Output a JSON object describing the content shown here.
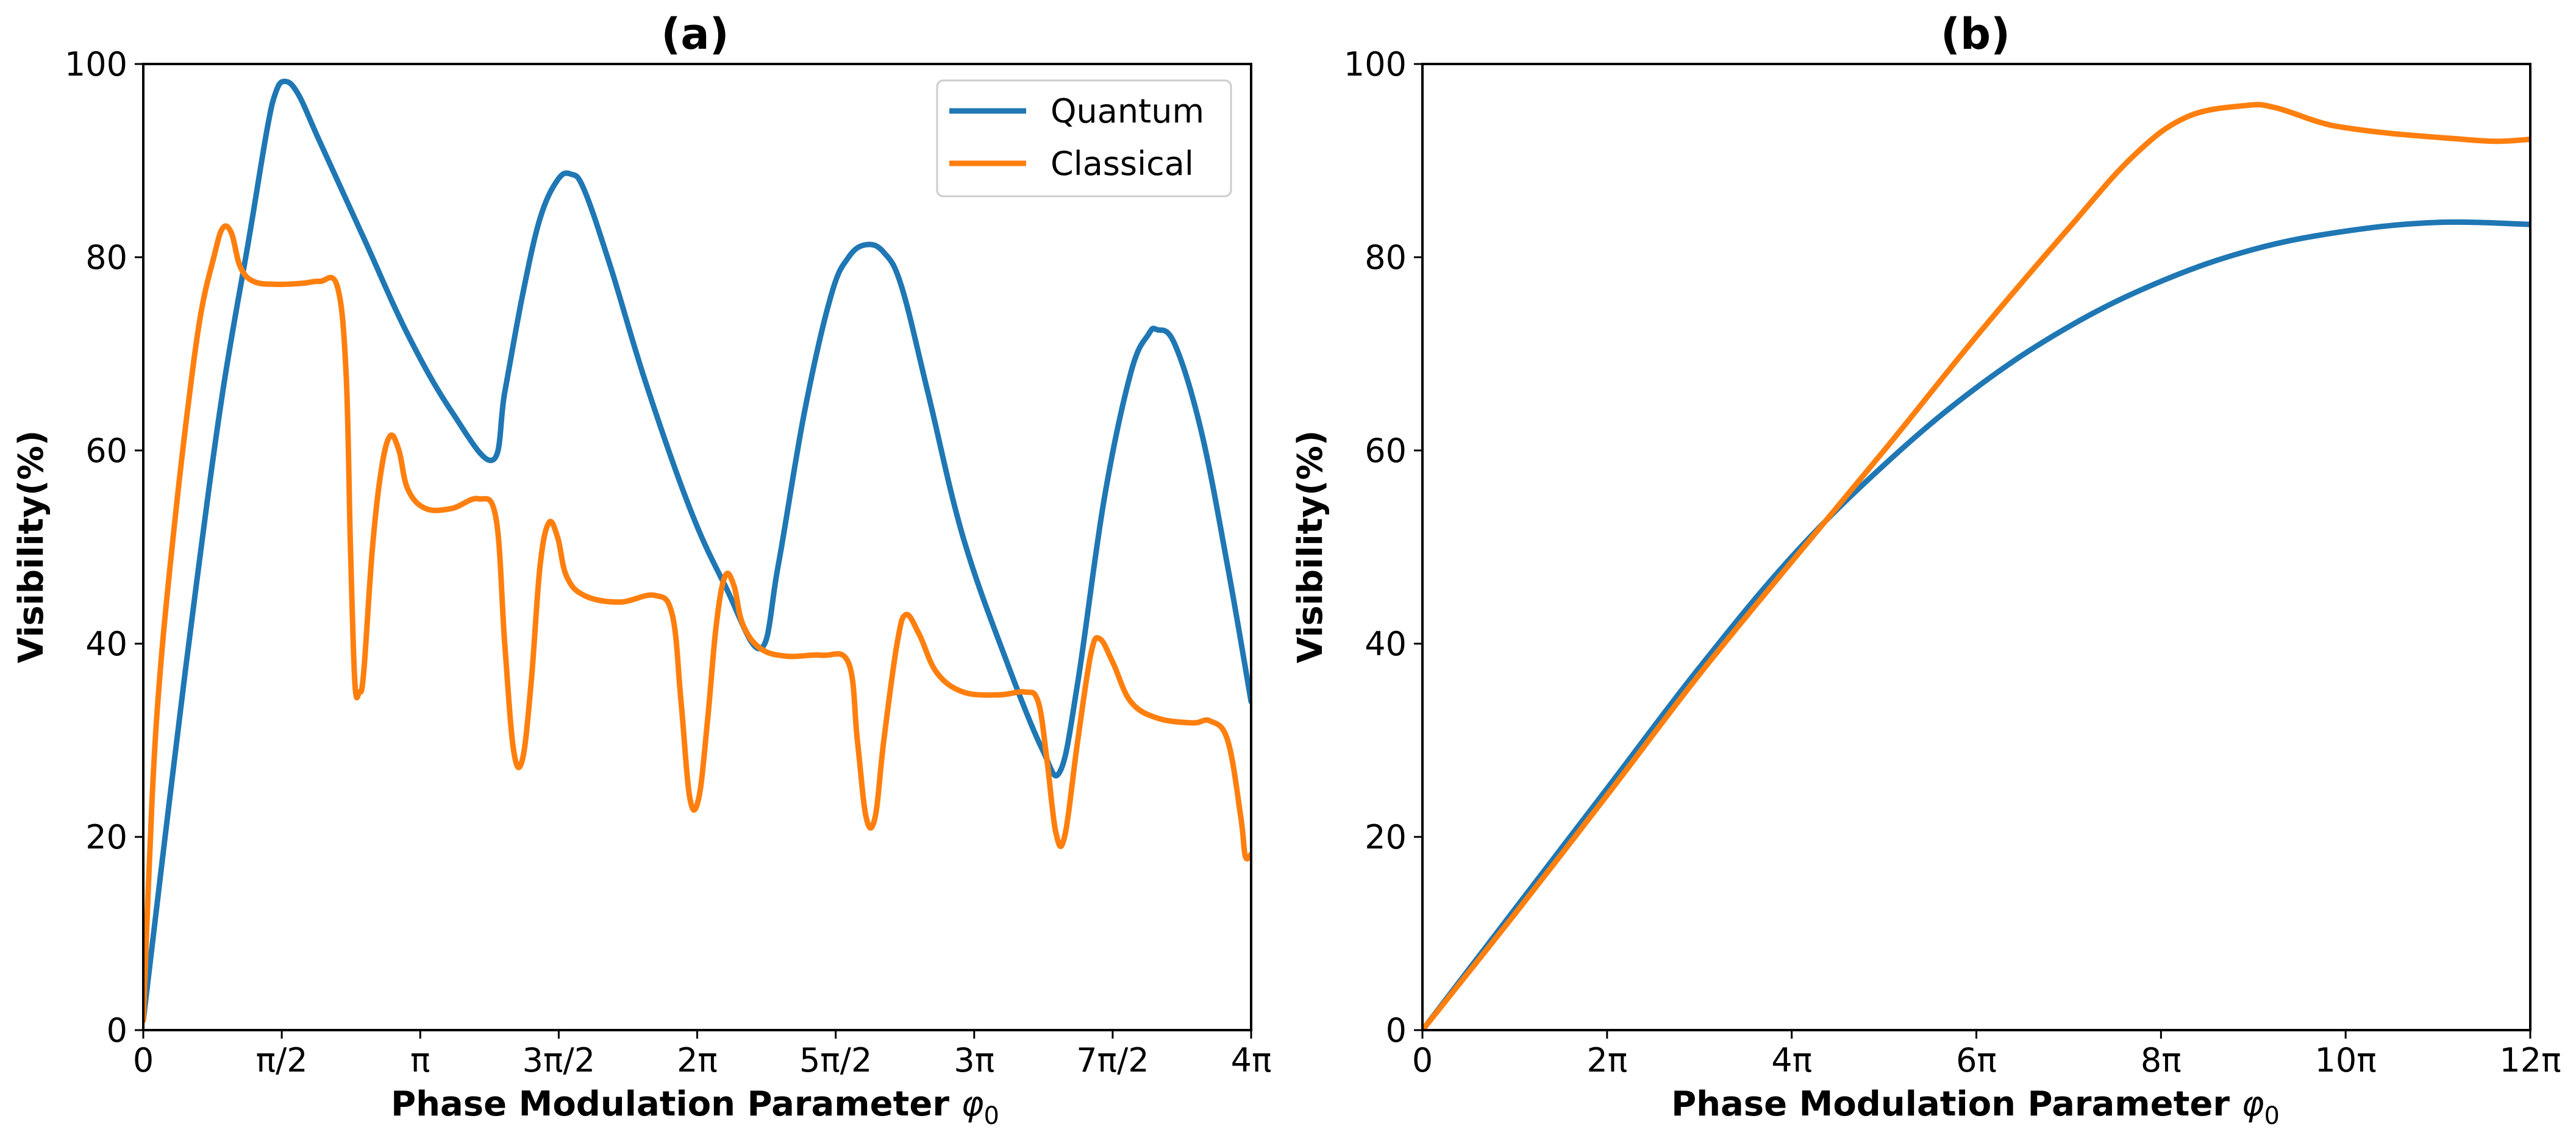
{
  "chart_data": [
    {
      "type": "line",
      "title": "(a)",
      "xlabel": "Phase Modulation Parameter",
      "xlabel_symbol": "φ",
      "xlabel_subscript": "0",
      "ylabel": "Visibility(%)",
      "xlim": [
        0,
        12.566
      ],
      "ylim": [
        0,
        100
      ],
      "xticks": [
        0,
        1.5708,
        3.1416,
        4.7124,
        6.2832,
        7.854,
        9.4248,
        10.9956,
        12.5664
      ],
      "xtick_labels": [
        "0",
        "π/2",
        "π",
        "3π/2",
        "2π",
        "5π/2",
        "3π",
        "7π/2",
        "4π"
      ],
      "yticks": [
        0,
        20,
        40,
        60,
        80,
        100
      ],
      "ytick_labels": [
        "0",
        "20",
        "40",
        "60",
        "80",
        "100"
      ],
      "legend_position": "top-right",
      "series": [
        {
          "name": "Quantum",
          "color": "#1f77b4",
          "points": [
            [
              0,
              1
            ],
            [
              0.3,
              24
            ],
            [
              0.6,
              46
            ],
            [
              0.9,
              66
            ],
            [
              1.2,
              82
            ],
            [
              1.4,
              93
            ],
            [
              1.5,
              97
            ],
            [
              1.6,
              98.2
            ],
            [
              1.75,
              97
            ],
            [
              2.0,
              92
            ],
            [
              2.5,
              82
            ],
            [
              3.0,
              72
            ],
            [
              3.5,
              64
            ],
            [
              3.96,
              59
            ],
            [
              4.1,
              66
            ],
            [
              4.3,
              76
            ],
            [
              4.5,
              84
            ],
            [
              4.7,
              88
            ],
            [
              4.85,
              88.6
            ],
            [
              5.0,
              87
            ],
            [
              5.3,
              79
            ],
            [
              5.7,
              67
            ],
            [
              6.2,
              54
            ],
            [
              6.6,
              46
            ],
            [
              7.0,
              39.5
            ],
            [
              7.2,
              48
            ],
            [
              7.5,
              64
            ],
            [
              7.8,
              76
            ],
            [
              8.0,
              80
            ],
            [
              8.2,
              81.3
            ],
            [
              8.4,
              80.5
            ],
            [
              8.6,
              77
            ],
            [
              8.9,
              66
            ],
            [
              9.3,
              51
            ],
            [
              9.8,
              38
            ],
            [
              10.2,
              29
            ],
            [
              10.4,
              26.8
            ],
            [
              10.6,
              36
            ],
            [
              10.9,
              55
            ],
            [
              11.2,
              68
            ],
            [
              11.4,
              72
            ],
            [
              11.5,
              72.5
            ],
            [
              11.7,
              71
            ],
            [
              12.0,
              62
            ],
            [
              12.3,
              48
            ],
            [
              12.566,
              34
            ]
          ]
        },
        {
          "name": "Classical",
          "color": "#ff7f0e",
          "points": [
            [
              0,
              1
            ],
            [
              0.1,
              24
            ],
            [
              0.2,
              38
            ],
            [
              0.35,
              52
            ],
            [
              0.5,
              64
            ],
            [
              0.65,
              74
            ],
            [
              0.8,
              80
            ],
            [
              0.9,
              83
            ],
            [
              1.0,
              82.5
            ],
            [
              1.1,
              79
            ],
            [
              1.25,
              77.5
            ],
            [
              1.5,
              77.2
            ],
            [
              1.8,
              77.3
            ],
            [
              2.0,
              77.5
            ],
            [
              2.2,
              77
            ],
            [
              2.3,
              68
            ],
            [
              2.35,
              50
            ],
            [
              2.4,
              36
            ],
            [
              2.45,
              35
            ],
            [
              2.5,
              37
            ],
            [
              2.6,
              50
            ],
            [
              2.7,
              58
            ],
            [
              2.8,
              61.5
            ],
            [
              2.9,
              60
            ],
            [
              3.0,
              56
            ],
            [
              3.2,
              54
            ],
            [
              3.5,
              54
            ],
            [
              3.8,
              55
            ],
            [
              4.0,
              53
            ],
            [
              4.1,
              40
            ],
            [
              4.2,
              29
            ],
            [
              4.3,
              28
            ],
            [
              4.4,
              36
            ],
            [
              4.5,
              48
            ],
            [
              4.6,
              52.5
            ],
            [
              4.7,
              51
            ],
            [
              4.8,
              47
            ],
            [
              5.0,
              45
            ],
            [
              5.4,
              44.3
            ],
            [
              5.8,
              45
            ],
            [
              6.0,
              43
            ],
            [
              6.1,
              34
            ],
            [
              6.2,
              24
            ],
            [
              6.3,
              24
            ],
            [
              6.4,
              32
            ],
            [
              6.5,
              42
            ],
            [
              6.6,
              47
            ],
            [
              6.7,
              46
            ],
            [
              6.8,
              42
            ],
            [
              7.0,
              39.5
            ],
            [
              7.3,
              38.7
            ],
            [
              7.7,
              38.8
            ],
            [
              8.0,
              38
            ],
            [
              8.1,
              30
            ],
            [
              8.2,
              22
            ],
            [
              8.3,
              22
            ],
            [
              8.4,
              30
            ],
            [
              8.55,
              40
            ],
            [
              8.65,
              43
            ],
            [
              8.8,
              41
            ],
            [
              9.0,
              37
            ],
            [
              9.3,
              35
            ],
            [
              9.7,
              34.7
            ],
            [
              10.0,
              35
            ],
            [
              10.15,
              34
            ],
            [
              10.25,
              28
            ],
            [
              10.35,
              20.5
            ],
            [
              10.45,
              20
            ],
            [
              10.6,
              30
            ],
            [
              10.75,
              39
            ],
            [
              10.85,
              40.5
            ],
            [
              11.0,
              38
            ],
            [
              11.2,
              34
            ],
            [
              11.5,
              32.3
            ],
            [
              11.9,
              31.8
            ],
            [
              12.1,
              32
            ],
            [
              12.3,
              30
            ],
            [
              12.45,
              22
            ],
            [
              12.5,
              18
            ],
            [
              12.566,
              18.2
            ]
          ]
        }
      ]
    },
    {
      "type": "line",
      "title": "(b)",
      "xlabel": "Phase Modulation Parameter",
      "xlabel_symbol": "φ",
      "xlabel_subscript": "0",
      "ylabel": "Visibility(%)",
      "xlim": [
        0,
        37.699
      ],
      "ylim": [
        0,
        100
      ],
      "xticks": [
        0,
        6.2832,
        12.5664,
        18.8496,
        25.1327,
        31.4159,
        37.6991
      ],
      "xtick_labels": [
        "0",
        "2π",
        "4π",
        "6π",
        "8π",
        "10π",
        "12π"
      ],
      "yticks": [
        0,
        20,
        40,
        60,
        80,
        100
      ],
      "ytick_labels": [
        "0",
        "20",
        "40",
        "60",
        "80",
        "100"
      ],
      "series": [
        {
          "name": "Quantum",
          "color": "#1f77b4",
          "points": [
            [
              0,
              0
            ],
            [
              3.14,
              12.5
            ],
            [
              6.28,
              25
            ],
            [
              9.42,
              37.5
            ],
            [
              12.57,
              49
            ],
            [
              15.71,
              58.5
            ],
            [
              18.85,
              66.5
            ],
            [
              21.99,
              72.8
            ],
            [
              25.13,
              77.5
            ],
            [
              28.27,
              80.8
            ],
            [
              31.42,
              82.7
            ],
            [
              34.56,
              83.6
            ],
            [
              37.7,
              83.4
            ]
          ]
        },
        {
          "name": "Classical",
          "color": "#ff7f0e",
          "points": [
            [
              0,
              0
            ],
            [
              3.14,
              12
            ],
            [
              6.28,
              24.3
            ],
            [
              9.42,
              36.8
            ],
            [
              12.57,
              48.5
            ],
            [
              15.71,
              60
            ],
            [
              18.85,
              71.8
            ],
            [
              21.99,
              83
            ],
            [
              24.2,
              90.5
            ],
            [
              26.0,
              94.5
            ],
            [
              28.0,
              95.7
            ],
            [
              29.0,
              95.5
            ],
            [
              30.5,
              94
            ],
            [
              31.42,
              93.4
            ],
            [
              33.0,
              92.8
            ],
            [
              35.0,
              92.3
            ],
            [
              36.5,
              92
            ],
            [
              37.7,
              92.2
            ]
          ]
        }
      ]
    }
  ]
}
